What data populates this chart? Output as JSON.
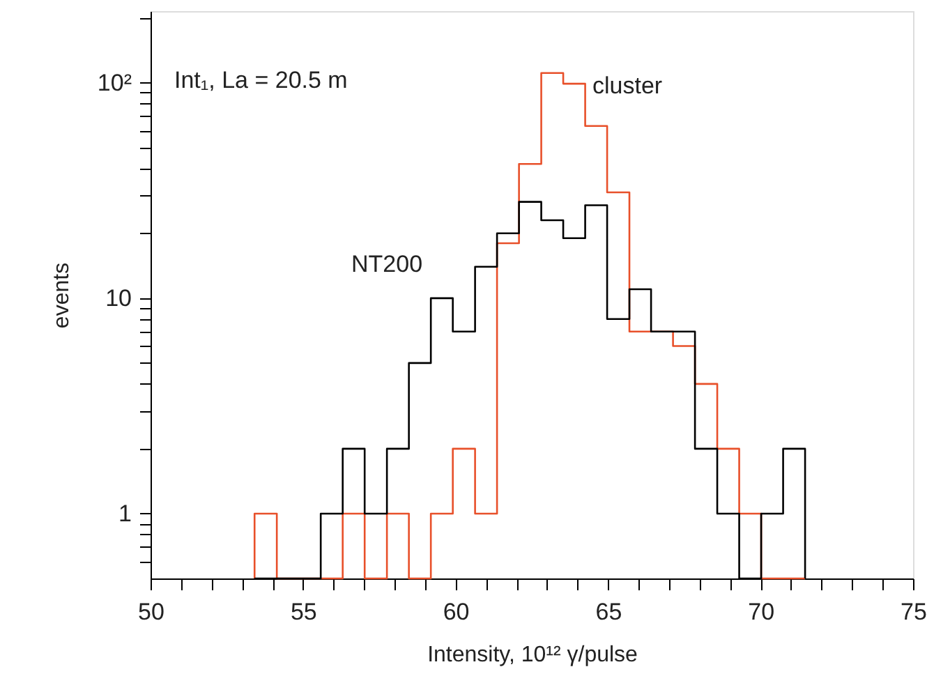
{
  "chart_data": {
    "type": "histogram",
    "xlabel": "Intensity, 10¹² γ/pulse",
    "ylabel": "events",
    "annotations": [
      "Int₁, La = 20.5 m"
    ],
    "bins": [
      53.41,
      54.14,
      54.86,
      55.58,
      56.3,
      57.02,
      57.75,
      58.47,
      59.19,
      59.91,
      60.64,
      61.36,
      62.08,
      62.81,
      63.53,
      64.25,
      64.97,
      65.7,
      66.41,
      67.13,
      67.85,
      68.58,
      69.3,
      70.02,
      70.74,
      71.46
    ],
    "series": [
      {
        "name": "cluster",
        "color": "#e8502a",
        "values": [
          1,
          null,
          null,
          null,
          1,
          null,
          1,
          null,
          1,
          2,
          1,
          18,
          42,
          111,
          99,
          63,
          31,
          7,
          7,
          6,
          4,
          2,
          1,
          null,
          null
        ]
      },
      {
        "name": "NT200",
        "color": "#000000",
        "values": [
          null,
          null,
          null,
          1,
          2,
          1,
          2,
          5,
          10,
          7,
          14,
          20,
          28,
          23,
          19,
          27,
          8,
          11,
          7,
          7,
          2,
          1,
          null,
          1,
          2
        ]
      }
    ],
    "log": true,
    "xlim": [
      50,
      75
    ],
    "ylim": [
      0.5,
      215
    ],
    "xticks": [
      50,
      {
        "value": 51,
        "label": null
      },
      {
        "value": 52,
        "label": null
      },
      {
        "value": 53,
        "label": null
      },
      {
        "value": 54,
        "label": null
      },
      55,
      {
        "value": 56,
        "label": null
      },
      {
        "value": 57,
        "label": null
      },
      {
        "value": 58,
        "label": null
      },
      {
        "value": 59,
        "label": null
      },
      60,
      {
        "value": 61,
        "label": null
      },
      {
        "value": 62,
        "label": null
      },
      {
        "value": 63,
        "label": null
      },
      {
        "value": 64,
        "label": null
      },
      65,
      {
        "value": 66,
        "label": null
      },
      {
        "value": 67,
        "label": null
      },
      {
        "value": 68,
        "label": null
      },
      {
        "value": 69,
        "label": null
      },
      70,
      {
        "value": 71,
        "label": null
      },
      {
        "value": 72,
        "label": null
      },
      {
        "value": 73,
        "label": null
      },
      {
        "value": 74,
        "label": null
      },
      75
    ],
    "yticks": [
      {
        "value": 0.6,
        "label": null
      },
      {
        "value": 0.7,
        "label": null
      },
      {
        "value": 0.8,
        "label": null
      },
      {
        "value": 0.9,
        "label": null
      },
      1,
      {
        "value": 2,
        "label": null
      },
      {
        "value": 3,
        "label": null
      },
      {
        "value": 4,
        "label": null
      },
      {
        "value": 5,
        "label": null
      },
      {
        "value": 6,
        "label": null
      },
      {
        "value": 7,
        "label": null
      },
      {
        "value": 8,
        "label": null
      },
      {
        "value": 9,
        "label": null
      },
      10,
      {
        "value": 20,
        "label": null
      },
      {
        "value": 30,
        "label": null
      },
      {
        "value": 40,
        "label": null
      },
      {
        "value": 50,
        "label": null
      },
      {
        "value": 60,
        "label": null
      },
      {
        "value": 70,
        "label": null
      },
      {
        "value": 80,
        "label": null
      },
      {
        "value": 90,
        "label": null
      },
      {
        "value": 100,
        "label": "10²"
      },
      {
        "value": 200,
        "label": null
      }
    ],
    "grid": false
  }
}
